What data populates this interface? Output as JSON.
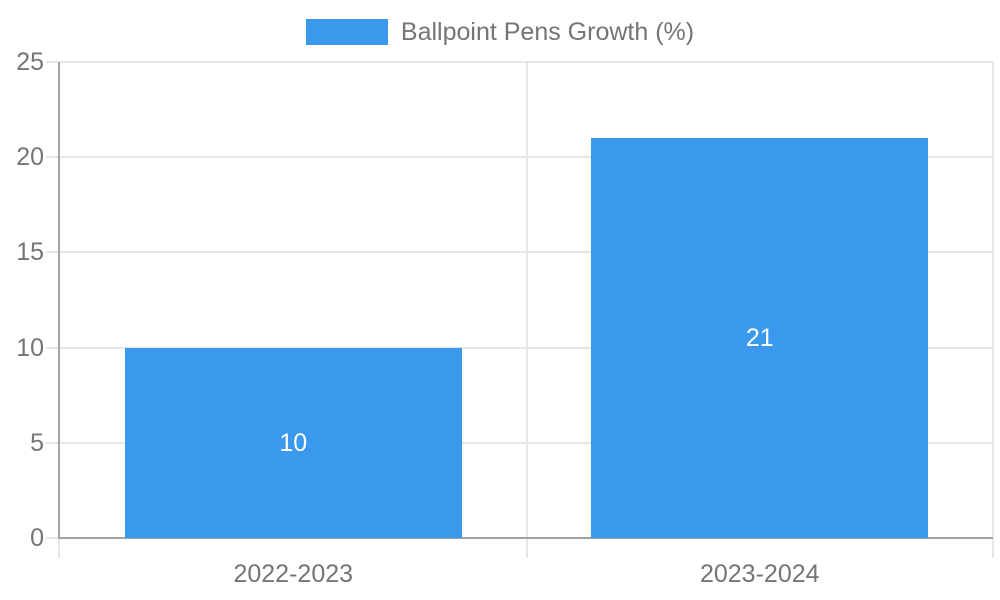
{
  "legend": {
    "position": "top",
    "items": [
      {
        "label": "Ballpoint Pens Growth (%)"
      }
    ]
  },
  "colors": {
    "bar": "#3a99ec",
    "bar_label": "#ffffff",
    "grid": "#e6e6e6",
    "axis": "#a3a3a3",
    "text": "#757575",
    "background": "#ffffff"
  },
  "chart_data": {
    "type": "bar",
    "title": "",
    "categories": [
      "2022-2023",
      "2023-2024"
    ],
    "series": [
      {
        "name": "Ballpoint Pens Growth (%)",
        "values": [
          10,
          21
        ]
      }
    ],
    "ylim": [
      0,
      25
    ],
    "yticks": [
      0,
      5,
      10,
      15,
      20,
      25
    ],
    "grid": true,
    "legend_position": "top",
    "bar_value_labels_shown": true
  }
}
